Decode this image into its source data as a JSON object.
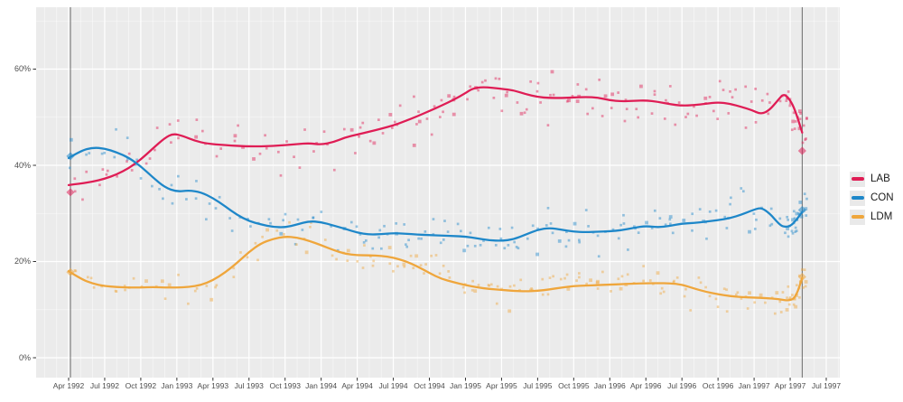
{
  "page": {
    "background": "#ffffff"
  },
  "chart_data": {
    "type": "line",
    "title": "",
    "xlabel": "",
    "ylabel": "",
    "legend_position": "right",
    "grid": "on",
    "x_unit": "months since Apr 1992",
    "xlim_months": [
      -2.7,
      64.1
    ],
    "ylim_pct": [
      -4.1,
      72.9
    ],
    "x_ticks": [
      {
        "m": 0,
        "label": "Apr 1992"
      },
      {
        "m": 3,
        "label": "Jul 1992"
      },
      {
        "m": 6,
        "label": "Oct 1992"
      },
      {
        "m": 9,
        "label": "Jan 1993"
      },
      {
        "m": 12,
        "label": "Apr 1993"
      },
      {
        "m": 15,
        "label": "Jul 1993"
      },
      {
        "m": 18,
        "label": "Oct 1993"
      },
      {
        "m": 21,
        "label": "Jan 1994"
      },
      {
        "m": 24,
        "label": "Apr 1994"
      },
      {
        "m": 27,
        "label": "Jul 1994"
      },
      {
        "m": 30,
        "label": "Oct 1994"
      },
      {
        "m": 33,
        "label": "Jan 1995"
      },
      {
        "m": 36,
        "label": "Apr 1995"
      },
      {
        "m": 39,
        "label": "Jul 1995"
      },
      {
        "m": 42,
        "label": "Oct 1995"
      },
      {
        "m": 45,
        "label": "Jan 1996"
      },
      {
        "m": 48,
        "label": "Apr 1996"
      },
      {
        "m": 51,
        "label": "Jul 1996"
      },
      {
        "m": 54,
        "label": "Oct 1996"
      },
      {
        "m": 57,
        "label": "Jan 1997"
      },
      {
        "m": 60,
        "label": "Apr 1997"
      },
      {
        "m": 63,
        "label": "Jul 1997"
      }
    ],
    "y_ticks": [
      {
        "value": 0,
        "label": "0%"
      },
      {
        "value": 20,
        "label": "20%"
      },
      {
        "value": 40,
        "label": "40%"
      },
      {
        "value": 60,
        "label": "60%"
      }
    ],
    "y_minor": [
      10,
      30,
      50,
      70
    ],
    "colors": {
      "panel_bg": "#ebebeb",
      "grid_major": "#ffffff",
      "grid_minor": "rgba(255,255,255,0.55)",
      "axis_text": "#4d4d4d",
      "tick_mark": "#333333",
      "event_line": "rgba(70,70,70,0.8)",
      "legend_key_bg": "#e9e9e9"
    },
    "event_lines": [
      {
        "m": 0.15
      },
      {
        "m": 61.0
      }
    ],
    "result_markers": [
      {
        "m": 0.15,
        "values": {
          "LAB": 34.4,
          "CON": 41.9,
          "LDM": 17.8
        }
      },
      {
        "m": 61.0,
        "values": {
          "LAB": 43.0,
          "CON": 30.7,
          "LDM": 16.8
        }
      }
    ],
    "series": [
      {
        "name": "LAB",
        "color": "#df1d55",
        "line_points": [
          [
            0,
            35.9
          ],
          [
            1,
            36.2
          ],
          [
            2,
            36.6
          ],
          [
            3,
            37.2
          ],
          [
            4,
            38.1
          ],
          [
            5,
            39.4
          ],
          [
            6,
            41.2
          ],
          [
            7,
            43.5
          ],
          [
            8,
            45.7
          ],
          [
            8.7,
            46.6
          ],
          [
            9.5,
            46.1
          ],
          [
            10.5,
            45.1
          ],
          [
            11.5,
            44.5
          ],
          [
            13,
            44.2
          ],
          [
            15,
            43.9
          ],
          [
            17,
            44.0
          ],
          [
            19,
            44.4
          ],
          [
            20,
            44.6
          ],
          [
            21,
            44.3
          ],
          [
            22,
            44.8
          ],
          [
            23,
            45.8
          ],
          [
            24,
            46.4
          ],
          [
            25,
            47.0
          ],
          [
            26,
            47.6
          ],
          [
            27,
            48.3
          ],
          [
            28,
            49.2
          ],
          [
            29,
            50.2
          ],
          [
            30,
            51.3
          ],
          [
            31,
            52.4
          ],
          [
            32,
            53.6
          ],
          [
            33,
            55.0
          ],
          [
            33.6,
            56.0
          ],
          [
            34.5,
            56.3
          ],
          [
            36,
            55.9
          ],
          [
            37,
            55.6
          ],
          [
            38,
            54.8
          ],
          [
            39,
            54.2
          ],
          [
            40,
            54.0
          ],
          [
            41,
            54.0
          ],
          [
            42,
            54.1
          ],
          [
            43,
            54.2
          ],
          [
            44,
            54.1
          ],
          [
            45,
            53.5
          ],
          [
            46,
            53.3
          ],
          [
            47,
            53.4
          ],
          [
            48,
            53.5
          ],
          [
            49,
            53.2
          ],
          [
            50,
            52.7
          ],
          [
            51,
            52.4
          ],
          [
            52,
            52.5
          ],
          [
            53,
            52.8
          ],
          [
            54,
            53.1
          ],
          [
            55,
            52.8
          ],
          [
            56,
            52.1
          ],
          [
            56.8,
            51.5
          ],
          [
            57.6,
            50.6
          ],
          [
            58.3,
            51.5
          ],
          [
            59,
            53.6
          ],
          [
            59.5,
            55.0
          ],
          [
            60.1,
            53.2
          ],
          [
            60.5,
            50.8
          ],
          [
            61,
            46.8
          ]
        ],
        "scatter": {
          "seed": 11,
          "per_month_early": 2,
          "per_month_late": 3,
          "late_from_month": 24,
          "jitter_std_pct": 2.6,
          "point_alpha": 0.45,
          "end_cluster": {
            "from": 59.6,
            "to": 61.4,
            "count": 20,
            "jitter_std_pct": 2.0
          }
        }
      },
      {
        "name": "CON",
        "color": "#1e87c9",
        "line_points": [
          [
            0,
            41.5
          ],
          [
            1,
            43.0
          ],
          [
            2,
            43.7
          ],
          [
            3,
            43.5
          ],
          [
            4,
            42.7
          ],
          [
            5,
            41.6
          ],
          [
            6,
            39.8
          ],
          [
            7,
            37.5
          ],
          [
            8,
            35.4
          ],
          [
            9,
            34.5
          ],
          [
            10,
            34.8
          ],
          [
            11,
            34.4
          ],
          [
            12,
            33.2
          ],
          [
            13,
            31.5
          ],
          [
            14,
            29.7
          ],
          [
            15,
            28.4
          ],
          [
            16,
            27.7
          ],
          [
            17,
            27.2
          ],
          [
            18,
            27.1
          ],
          [
            19,
            27.7
          ],
          [
            20,
            28.4
          ],
          [
            21,
            28.2
          ],
          [
            22,
            27.5
          ],
          [
            23,
            26.8
          ],
          [
            24,
            26.0
          ],
          [
            25,
            25.6
          ],
          [
            26,
            25.7
          ],
          [
            27,
            25.9
          ],
          [
            28,
            25.8
          ],
          [
            29,
            25.6
          ],
          [
            30,
            25.5
          ],
          [
            31,
            25.4
          ],
          [
            32,
            25.3
          ],
          [
            33,
            25.2
          ],
          [
            34,
            24.8
          ],
          [
            35,
            24.4
          ],
          [
            36,
            24.3
          ],
          [
            37,
            24.6
          ],
          [
            38,
            25.6
          ],
          [
            39,
            26.6
          ],
          [
            40,
            27.0
          ],
          [
            41,
            26.6
          ],
          [
            42,
            26.2
          ],
          [
            43,
            26.1
          ],
          [
            44,
            26.2
          ],
          [
            45,
            26.3
          ],
          [
            46,
            26.5
          ],
          [
            47,
            27.0
          ],
          [
            48,
            27.4
          ],
          [
            49,
            27.1
          ],
          [
            50,
            27.4
          ],
          [
            51,
            27.9
          ],
          [
            52,
            28.0
          ],
          [
            53,
            28.3
          ],
          [
            54,
            28.6
          ],
          [
            55,
            29.0
          ],
          [
            56,
            29.8
          ],
          [
            57,
            30.8
          ],
          [
            57.6,
            31.2
          ],
          [
            58.3,
            30.0
          ],
          [
            59,
            28.0
          ],
          [
            59.4,
            27.2
          ],
          [
            60,
            27.3
          ],
          [
            60.5,
            28.6
          ],
          [
            61,
            30.3
          ]
        ],
        "scatter": {
          "seed": 23,
          "per_month_early": 2,
          "per_month_late": 3,
          "late_from_month": 24,
          "jitter_std_pct": 2.2,
          "point_alpha": 0.45,
          "end_cluster": {
            "from": 59.6,
            "to": 61.4,
            "count": 22,
            "jitter_std_pct": 1.6
          }
        }
      },
      {
        "name": "LDM",
        "color": "#efa63c",
        "line_points": [
          [
            0,
            18.0
          ],
          [
            1,
            16.4
          ],
          [
            2,
            15.4
          ],
          [
            3,
            14.9
          ],
          [
            4,
            14.7
          ],
          [
            5,
            14.6
          ],
          [
            6,
            14.6
          ],
          [
            7,
            14.7
          ],
          [
            8,
            14.6
          ],
          [
            9,
            14.6
          ],
          [
            10,
            14.7
          ],
          [
            11,
            15.1
          ],
          [
            12,
            16.1
          ],
          [
            13,
            17.7
          ],
          [
            14,
            19.7
          ],
          [
            15,
            22.0
          ],
          [
            16,
            23.8
          ],
          [
            17,
            24.7
          ],
          [
            18,
            25.2
          ],
          [
            19,
            25.0
          ],
          [
            20,
            24.3
          ],
          [
            21,
            23.4
          ],
          [
            22,
            22.4
          ],
          [
            23,
            21.6
          ],
          [
            24,
            21.3
          ],
          [
            25,
            21.3
          ],
          [
            26,
            21.2
          ],
          [
            27,
            20.8
          ],
          [
            28,
            20.1
          ],
          [
            29,
            19.0
          ],
          [
            30,
            17.6
          ],
          [
            31,
            16.4
          ],
          [
            32,
            15.7
          ],
          [
            33,
            15.1
          ],
          [
            34,
            14.6
          ],
          [
            35,
            14.3
          ],
          [
            36,
            14.1
          ],
          [
            37,
            13.9
          ],
          [
            38,
            13.8
          ],
          [
            39,
            13.9
          ],
          [
            40,
            14.2
          ],
          [
            41,
            14.6
          ],
          [
            42,
            14.9
          ],
          [
            43,
            15.0
          ],
          [
            44,
            15.1
          ],
          [
            45,
            15.2
          ],
          [
            46,
            15.3
          ],
          [
            47,
            15.4
          ],
          [
            48,
            15.5
          ],
          [
            49,
            15.5
          ],
          [
            50,
            15.5
          ],
          [
            51,
            15.2
          ],
          [
            52,
            14.4
          ],
          [
            53,
            13.7
          ],
          [
            54,
            13.2
          ],
          [
            55,
            12.8
          ],
          [
            56,
            12.6
          ],
          [
            57,
            12.5
          ],
          [
            58,
            12.4
          ],
          [
            59,
            12.2
          ],
          [
            60,
            11.8
          ],
          [
            60.5,
            12.8
          ],
          [
            61,
            16.6
          ]
        ],
        "scatter": {
          "seed": 37,
          "per_month_early": 2,
          "per_month_late": 3,
          "late_from_month": 24,
          "jitter_std_pct": 1.8,
          "point_alpha": 0.45,
          "end_cluster": {
            "from": 59.6,
            "to": 61.4,
            "count": 20,
            "jitter_std_pct": 1.7
          }
        }
      }
    ]
  },
  "legend": {
    "items": [
      {
        "label": "LAB"
      },
      {
        "label": "CON"
      },
      {
        "label": "LDM"
      }
    ]
  }
}
